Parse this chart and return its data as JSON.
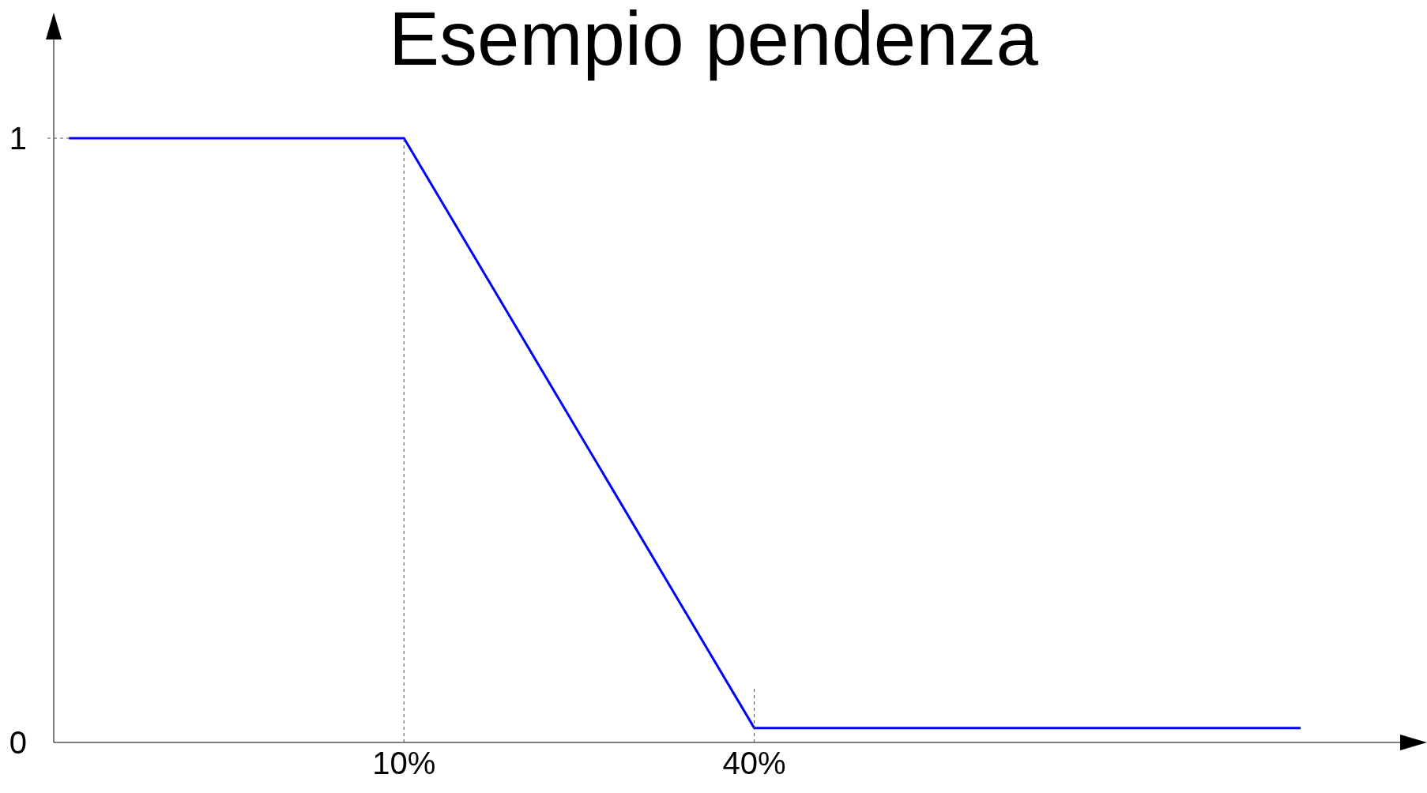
{
  "chart_data": {
    "type": "line",
    "title": "Esempio pendenza",
    "x": [
      -18.7,
      10,
      40,
      86.8
    ],
    "series": [
      {
        "color": "#0000ff",
        "values": [
          1,
          1,
          0.024,
          0.024
        ]
      }
    ],
    "xlim": [
      -20,
      96
    ],
    "xticks": [
      {
        "value": 10,
        "label": "10%"
      },
      {
        "value": 40,
        "label": "40%"
      }
    ],
    "ylim": [
      0,
      1.2
    ],
    "yticks": [
      0,
      1
    ],
    "marker": "none",
    "line_style": "solid"
  }
}
